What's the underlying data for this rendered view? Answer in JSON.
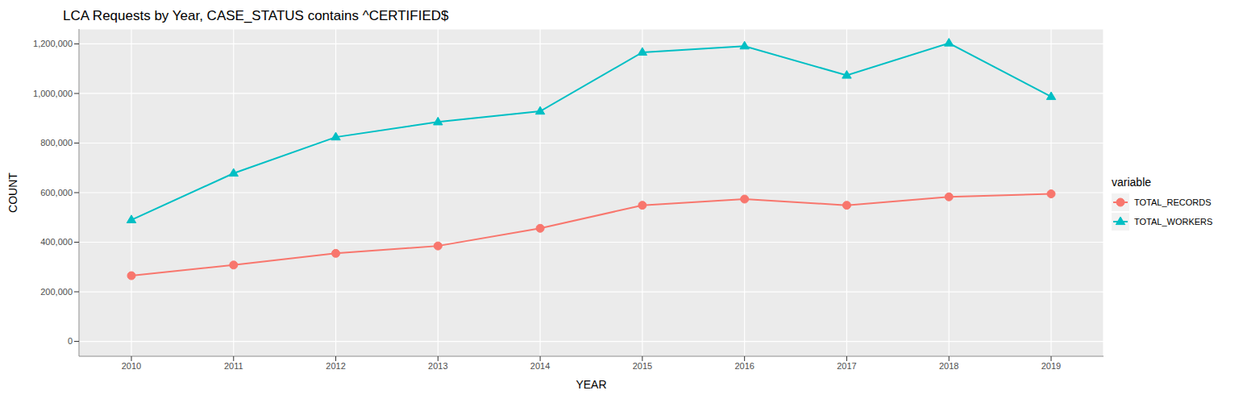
{
  "chart_data": {
    "type": "line",
    "title": "LCA Requests by Year, CASE_STATUS contains ^CERTIFIED$",
    "x_label": "YEAR",
    "y_label": "COUNT",
    "legend_title": "variable",
    "categories": [
      "2010",
      "2011",
      "2012",
      "2013",
      "2014",
      "2015",
      "2016",
      "2017",
      "2018",
      "2019"
    ],
    "series": [
      {
        "name": "TOTAL_RECORDS",
        "color": "#F8766D",
        "marker": "circle",
        "values": [
          265000,
          308000,
          355000,
          385000,
          456000,
          549000,
          574000,
          549000,
          583000,
          595000
        ]
      },
      {
        "name": "TOTAL_WORKERS",
        "color": "#00BFC4",
        "marker": "triangle",
        "values": [
          490000,
          678000,
          824000,
          885000,
          928000,
          1166000,
          1191000,
          1073000,
          1203000,
          987000
        ]
      }
    ],
    "ylim": [
      -60000,
      1260000
    ],
    "yticks": [
      0,
      {
        "value": 200000,
        "label": "200,000"
      },
      {
        "value": 400000,
        "label": "400,000"
      },
      {
        "value": 600000,
        "label": "600,000"
      },
      {
        "value": 800000,
        "label": "800,000"
      },
      {
        "value": 1000000,
        "label": "1,000,000"
      },
      {
        "value": 1200000,
        "label": "1,200,000"
      }
    ],
    "grid": true,
    "legend": "right"
  }
}
